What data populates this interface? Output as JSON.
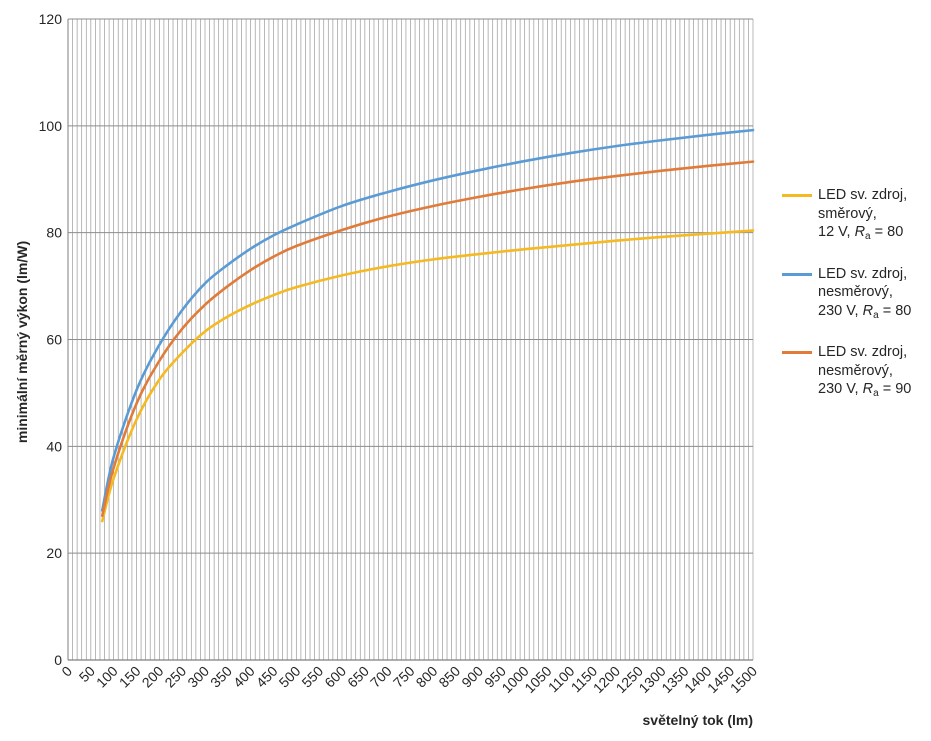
{
  "chart_data": {
    "type": "line",
    "xlabel": "světelný tok (lm)",
    "ylabel": "minimální měrný výkon (lm/W)",
    "xlim": [
      0,
      1500
    ],
    "ylim": [
      0,
      120
    ],
    "x_tick_step": 50,
    "y_ticks": [
      0,
      20,
      40,
      60,
      80,
      100,
      120
    ],
    "grid": true,
    "legend_position": "right",
    "series": [
      {
        "name": "LED sv. zdroj, směrový, 12 V, Ra = 80",
        "legend_lines": [
          "LED sv. zdroj,",
          "směrový,",
          "12 V, "
        ],
        "legend_tail": "= 80",
        "color": "#F5B921",
        "x": [
          75,
          100,
          150,
          200,
          250,
          300,
          350,
          400,
          450,
          500,
          600,
          700,
          800,
          900,
          1000,
          1100,
          1200,
          1300,
          1400,
          1500
        ],
        "y": [
          26,
          34,
          45,
          52.5,
          57.5,
          61.5,
          64.3,
          66.5,
          68.3,
          69.8,
          72,
          73.7,
          75,
          76,
          76.9,
          77.7,
          78.5,
          79.2,
          79.8,
          80.4
        ]
      },
      {
        "name": "LED sv. zdroj, nesměrový, 230 V, Ra = 80",
        "legend_lines": [
          "LED sv. zdroj,",
          "nesměrový,",
          "230 V, "
        ],
        "legend_tail": "= 80",
        "color": "#5B9BD5",
        "x": [
          75,
          100,
          150,
          200,
          250,
          300,
          350,
          400,
          450,
          500,
          600,
          700,
          800,
          900,
          1000,
          1100,
          1200,
          1300,
          1400,
          1500
        ],
        "y": [
          28,
          38,
          50.5,
          59,
          65.5,
          70.5,
          74,
          77,
          79.5,
          81.5,
          85,
          87.6,
          89.8,
          91.7,
          93.4,
          94.9,
          96.2,
          97.3,
          98.3,
          99.2
        ]
      },
      {
        "name": "LED sv. zdroj, nesměrový, 230 V, Ra = 90",
        "legend_lines": [
          "LED sv. zdroj,",
          "nesměrový,",
          "230 V, "
        ],
        "legend_tail": "= 90",
        "color": "#E07B39",
        "x": [
          75,
          100,
          150,
          200,
          250,
          300,
          350,
          400,
          450,
          500,
          600,
          700,
          800,
          900,
          1000,
          1100,
          1200,
          1300,
          1400,
          1500
        ],
        "y": [
          27,
          36,
          48,
          56,
          62,
          66.5,
          70,
          73,
          75.5,
          77.5,
          80.5,
          83,
          85,
          86.7,
          88.2,
          89.5,
          90.6,
          91.6,
          92.5,
          93.3
        ]
      }
    ]
  }
}
